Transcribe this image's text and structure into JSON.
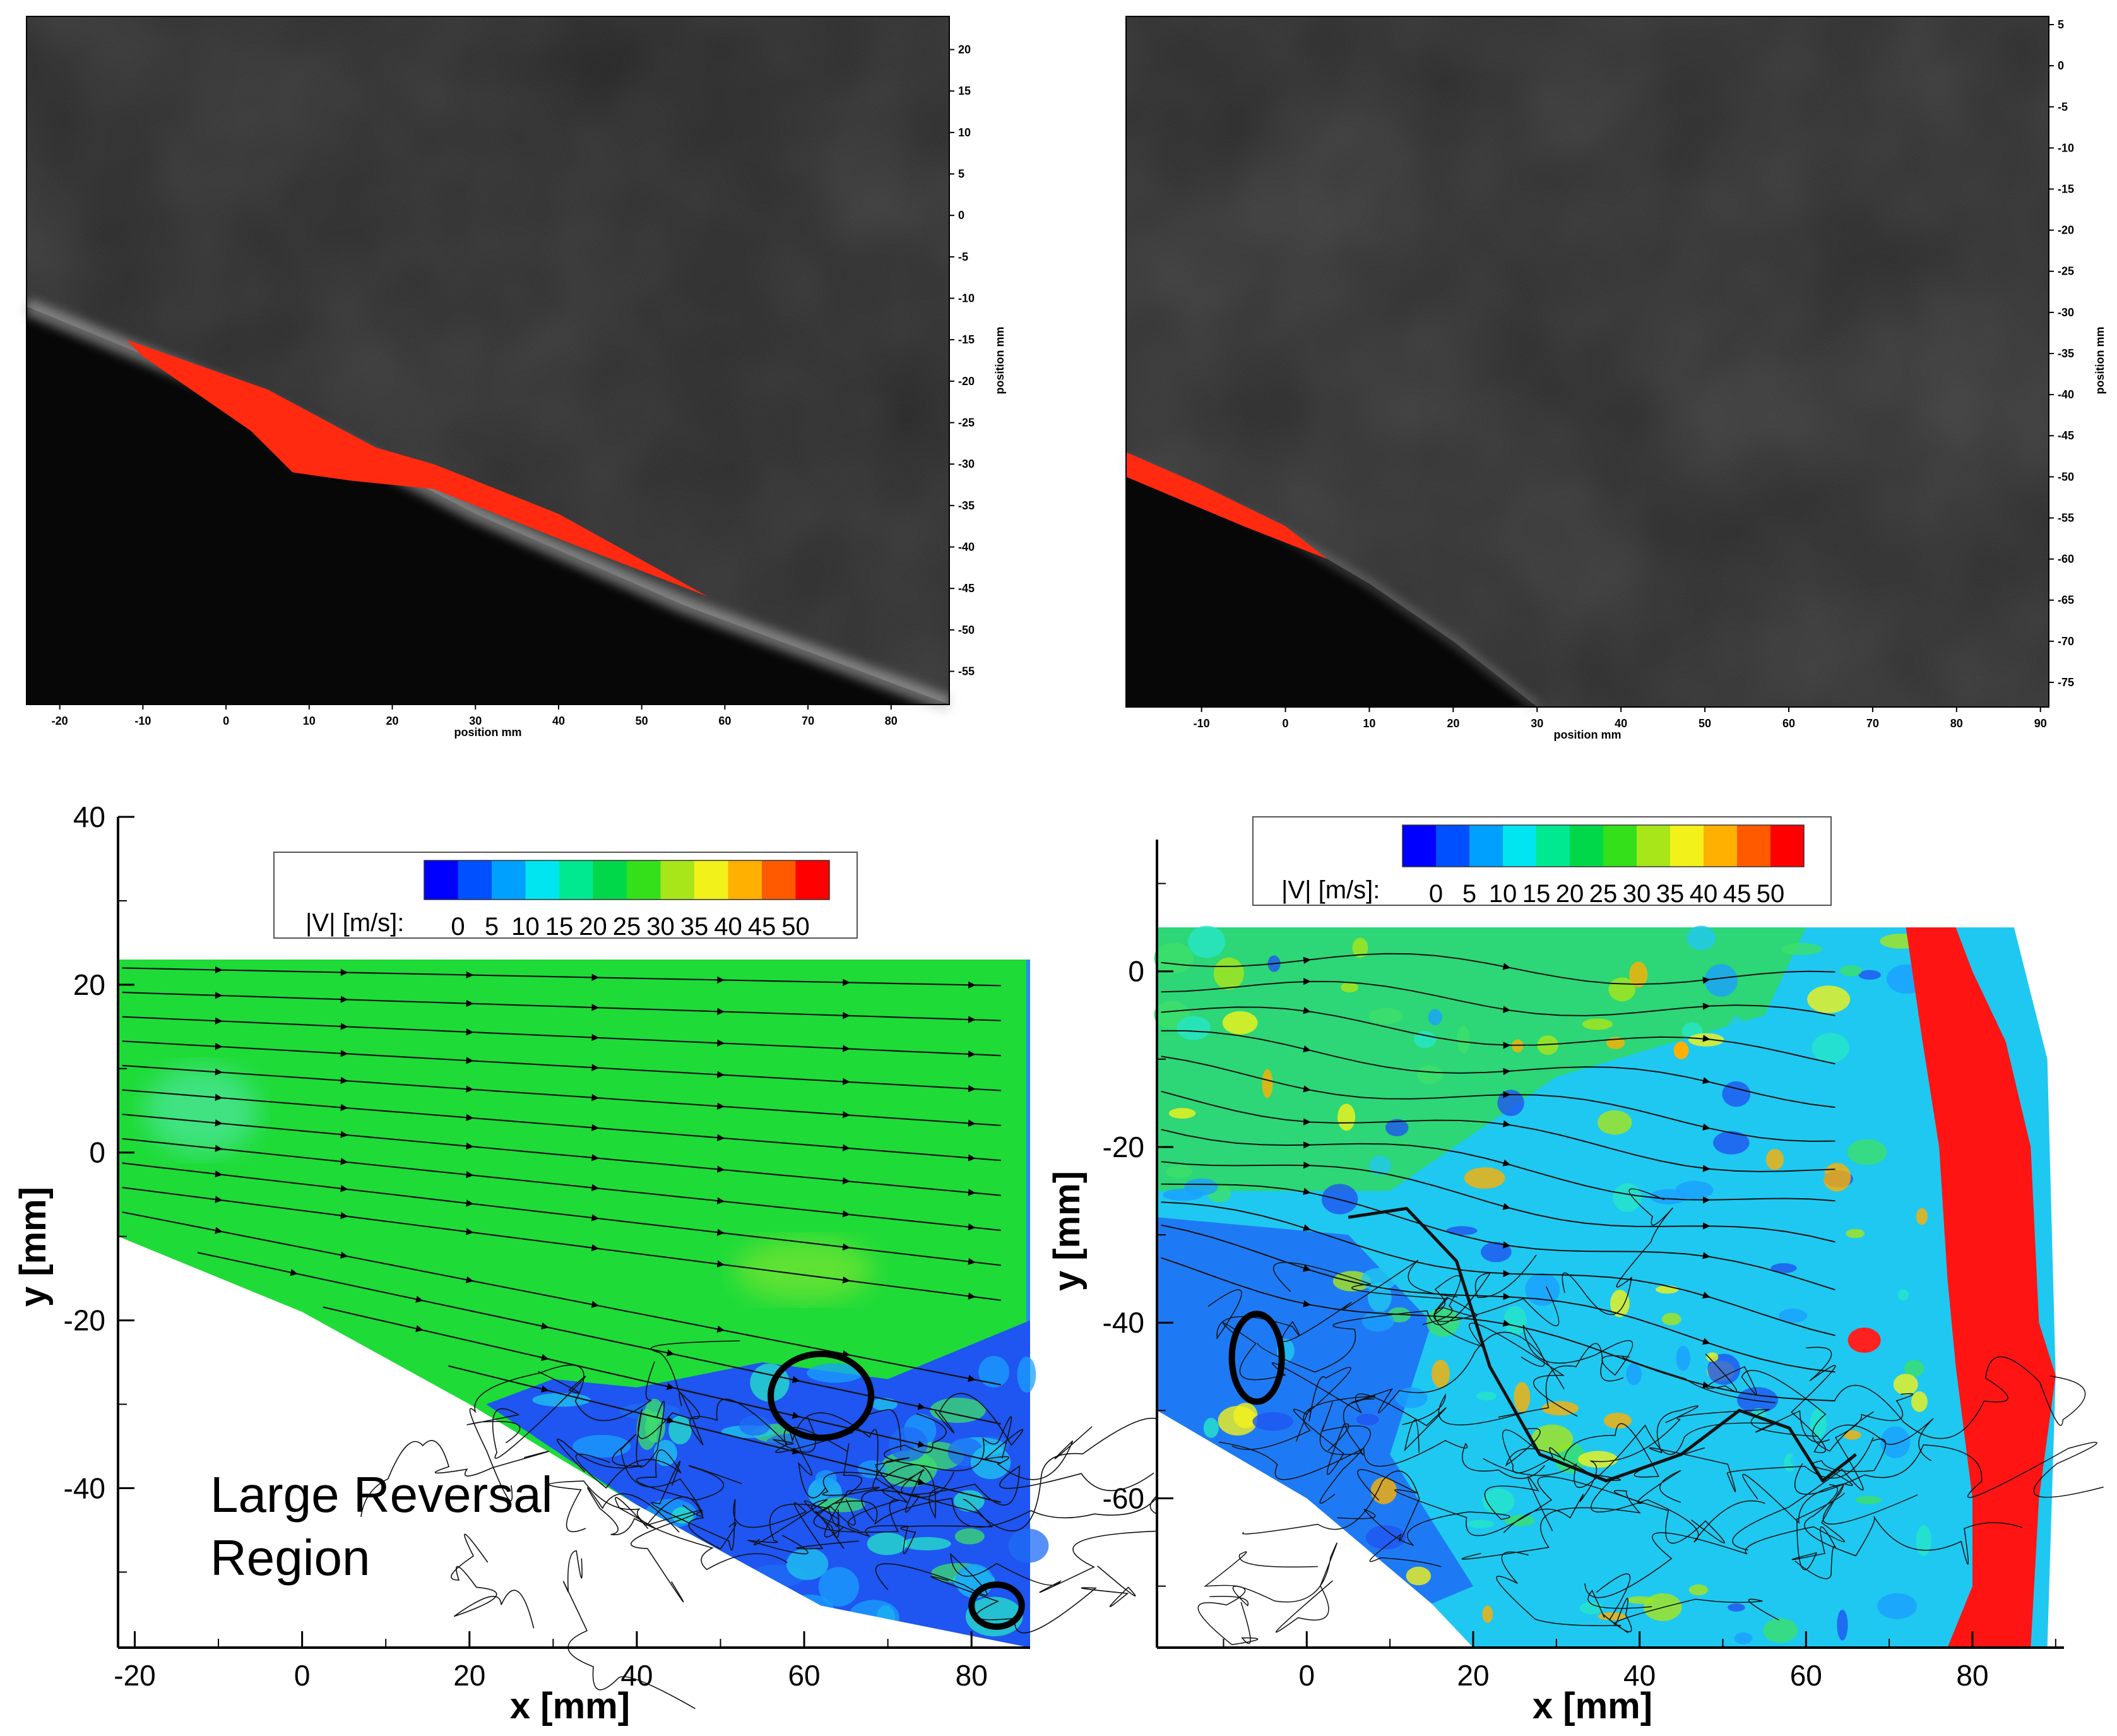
{
  "chart_data": [
    {
      "id": "tl",
      "type": "image",
      "xlabel": "position mm",
      "ylabel": "position mm",
      "xlim": [
        -24,
        87
      ],
      "ylim": [
        -59,
        24
      ],
      "xticks": [
        -20,
        -10,
        0,
        10,
        20,
        30,
        40,
        50,
        60,
        70,
        80
      ],
      "yticks": [
        20,
        15,
        10,
        5,
        0,
        -5,
        -10,
        -15,
        -20,
        -25,
        -30,
        -35,
        -40,
        -45,
        -50,
        -55
      ],
      "wall": [
        [
          -24,
          -11
        ],
        [
          5,
          -23
        ],
        [
          30,
          -36
        ],
        [
          55,
          -47
        ],
        [
          87,
          -59
        ]
      ],
      "red_region": [
        [
          -12,
          -15
        ],
        [
          5,
          -21
        ],
        [
          18,
          -28
        ],
        [
          25,
          -30
        ],
        [
          40,
          -36
        ],
        [
          58,
          -46
        ],
        [
          40,
          -39
        ],
        [
          25,
          -33
        ],
        [
          15,
          -32
        ],
        [
          8,
          -31
        ],
        [
          3,
          -26
        ],
        [
          -10,
          -17
        ]
      ]
    },
    {
      "id": "tr",
      "type": "image",
      "xlabel": "position mm",
      "ylabel": "position mm",
      "xlim": [
        -19,
        91
      ],
      "ylim": [
        -78,
        6
      ],
      "xticks": [
        -10,
        0,
        10,
        20,
        30,
        40,
        50,
        60,
        70,
        80,
        90
      ],
      "yticks": [
        5,
        0,
        -5,
        -10,
        -15,
        -20,
        -25,
        -30,
        -35,
        -40,
        -45,
        -50,
        -55,
        -60,
        -65,
        -70,
        -75
      ],
      "wall": [
        [
          -19,
          -48
        ],
        [
          0,
          -57
        ],
        [
          10,
          -63
        ],
        [
          20,
          -70
        ],
        [
          30,
          -78
        ]
      ],
      "red_region": [
        [
          -19,
          -47
        ],
        [
          -10,
          -51
        ],
        [
          0,
          -56
        ],
        [
          5,
          -60
        ],
        [
          -5,
          -56
        ],
        [
          -19,
          -50
        ]
      ]
    },
    {
      "id": "bl",
      "type": "contour",
      "xlabel": "x [mm]",
      "ylabel": "y [mm]",
      "xlim": [
        -22,
        87
      ],
      "ylim": [
        -59,
        40
      ],
      "xticks": [
        -20,
        0,
        20,
        40,
        60,
        80
      ],
      "yticks": [
        40,
        20,
        0,
        -20,
        -40
      ],
      "colorbar_label": "|V| [m/s]:",
      "colorbar_ticks": [
        "0",
        "5",
        "10",
        "15",
        "20",
        "25",
        "30",
        "35",
        "40",
        "45",
        "50"
      ],
      "colorbar_colors": [
        "#0000ff",
        "#0050ff",
        "#00a0ff",
        "#00e5f0",
        "#00e890",
        "#00d84a",
        "#33e01a",
        "#a8e61a",
        "#f2f21a",
        "#ffb000",
        "#ff5a00",
        "#ff0000"
      ],
      "annotation": [
        "Large Reversal",
        "Region"
      ],
      "wall": [
        [
          -22,
          -10
        ],
        [
          0,
          -19
        ],
        [
          20,
          -30
        ],
        [
          40,
          -42
        ],
        [
          62,
          -54
        ],
        [
          87,
          -59
        ]
      ],
      "domain_top": 23,
      "reversal_region": [
        [
          22,
          -30
        ],
        [
          30,
          -27
        ],
        [
          40,
          -28
        ],
        [
          55,
          -25
        ],
        [
          70,
          -27
        ],
        [
          87,
          -20
        ],
        [
          87,
          -59
        ],
        [
          62,
          -54
        ],
        [
          40,
          -42
        ]
      ],
      "loops": [
        {
          "cx": 62,
          "cy": -29,
          "rx": 6,
          "ry": 5
        },
        {
          "cx": 83,
          "cy": -54,
          "rx": 3,
          "ry": 2.5
        }
      ]
    },
    {
      "id": "br",
      "type": "contour",
      "xlabel": "x [mm]",
      "ylabel": "y [mm]",
      "xlim": [
        -18,
        91
      ],
      "ylim": [
        -77,
        15
      ],
      "xticks": [
        0,
        20,
        40,
        60,
        80
      ],
      "yticks": [
        0,
        -20,
        -40,
        -60
      ],
      "colorbar_label": "|V| [m/s]:",
      "colorbar_ticks": [
        "0",
        "5",
        "10",
        "15",
        "20",
        "25",
        "30",
        "35",
        "40",
        "45",
        "50"
      ],
      "colorbar_colors": [
        "#0000ff",
        "#0050ff",
        "#00a0ff",
        "#00e5f0",
        "#00e890",
        "#00d84a",
        "#33e01a",
        "#a8e61a",
        "#f2f21a",
        "#ffb000",
        "#ff5a00",
        "#ff0000"
      ],
      "wall": [
        [
          -18,
          -50
        ],
        [
          0,
          -60
        ],
        [
          15,
          -72
        ],
        [
          20,
          -77
        ]
      ],
      "domain_top": 5,
      "red_zone": [
        [
          78,
          5
        ],
        [
          80,
          0
        ],
        [
          84,
          -8
        ],
        [
          87,
          -20
        ],
        [
          88,
          -40
        ],
        [
          90,
          -46
        ],
        [
          88,
          -60
        ],
        [
          87,
          -77
        ],
        [
          77,
          -77
        ],
        [
          80,
          -70
        ],
        [
          80,
          -60
        ],
        [
          78,
          -45
        ],
        [
          77,
          -35
        ],
        [
          76,
          -20
        ],
        [
          74,
          -8
        ],
        [
          72,
          5
        ]
      ],
      "loops": [
        {
          "cx": -6,
          "cy": -44,
          "rx": 3,
          "ry": 5
        }
      ]
    }
  ]
}
